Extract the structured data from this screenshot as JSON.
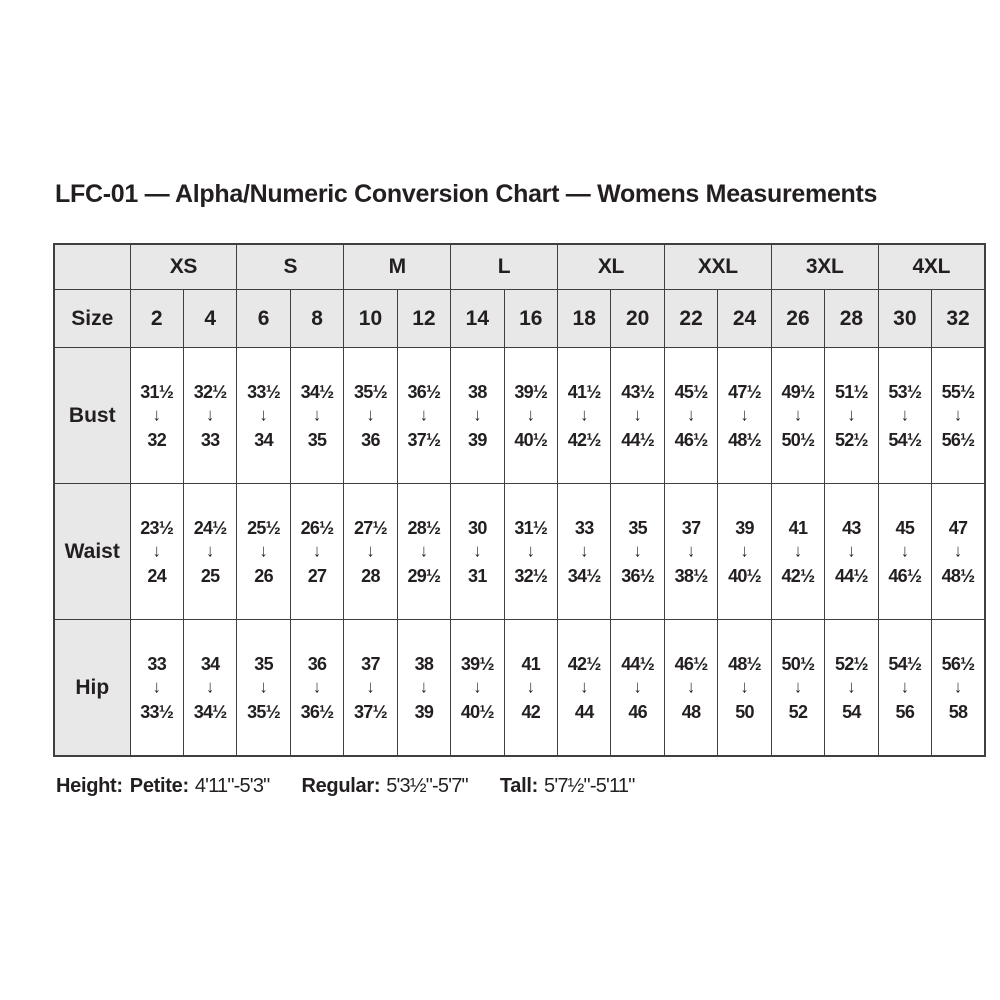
{
  "title": "LFC-01 — Alpha/Numeric Conversion Chart — Womens Measurements",
  "table": {
    "size_label": "Size",
    "alpha_sizes": [
      "XS",
      "S",
      "M",
      "L",
      "XL",
      "XXL",
      "3XL",
      "4XL"
    ],
    "sizes": [
      "2",
      "4",
      "6",
      "8",
      "10",
      "12",
      "14",
      "16",
      "18",
      "20",
      "22",
      "24",
      "26",
      "28",
      "30",
      "32"
    ],
    "arrow": "↓",
    "rows": [
      {
        "label": "Bust",
        "cells": [
          {
            "from": "31½",
            "to": "32"
          },
          {
            "from": "32½",
            "to": "33"
          },
          {
            "from": "33½",
            "to": "34"
          },
          {
            "from": "34½",
            "to": "35"
          },
          {
            "from": "35½",
            "to": "36"
          },
          {
            "from": "36½",
            "to": "37½"
          },
          {
            "from": "38",
            "to": "39"
          },
          {
            "from": "39½",
            "to": "40½"
          },
          {
            "from": "41½",
            "to": "42½"
          },
          {
            "from": "43½",
            "to": "44½"
          },
          {
            "from": "45½",
            "to": "46½"
          },
          {
            "from": "47½",
            "to": "48½"
          },
          {
            "from": "49½",
            "to": "50½"
          },
          {
            "from": "51½",
            "to": "52½"
          },
          {
            "from": "53½",
            "to": "54½"
          },
          {
            "from": "55½",
            "to": "56½"
          }
        ]
      },
      {
        "label": "Waist",
        "cells": [
          {
            "from": "23½",
            "to": "24"
          },
          {
            "from": "24½",
            "to": "25"
          },
          {
            "from": "25½",
            "to": "26"
          },
          {
            "from": "26½",
            "to": "27"
          },
          {
            "from": "27½",
            "to": "28"
          },
          {
            "from": "28½",
            "to": "29½"
          },
          {
            "from": "30",
            "to": "31"
          },
          {
            "from": "31½",
            "to": "32½"
          },
          {
            "from": "33",
            "to": "34½"
          },
          {
            "from": "35",
            "to": "36½"
          },
          {
            "from": "37",
            "to": "38½"
          },
          {
            "from": "39",
            "to": "40½"
          },
          {
            "from": "41",
            "to": "42½"
          },
          {
            "from": "43",
            "to": "44½"
          },
          {
            "from": "45",
            "to": "46½"
          },
          {
            "from": "47",
            "to": "48½"
          }
        ]
      },
      {
        "label": "Hip",
        "cells": [
          {
            "from": "33",
            "to": "33½"
          },
          {
            "from": "34",
            "to": "34½"
          },
          {
            "from": "35",
            "to": "35½"
          },
          {
            "from": "36",
            "to": "36½"
          },
          {
            "from": "37",
            "to": "37½"
          },
          {
            "from": "38",
            "to": "39"
          },
          {
            "from": "39½",
            "to": "40½"
          },
          {
            "from": "41",
            "to": "42"
          },
          {
            "from": "42½",
            "to": "44"
          },
          {
            "from": "44½",
            "to": "46"
          },
          {
            "from": "46½",
            "to": "48"
          },
          {
            "from": "48½",
            "to": "50"
          },
          {
            "from": "50½",
            "to": "52"
          },
          {
            "from": "52½",
            "to": "54"
          },
          {
            "from": "54½",
            "to": "56"
          },
          {
            "from": "56½",
            "to": "58"
          }
        ]
      }
    ]
  },
  "footer": {
    "height_label": "Height:",
    "entries": [
      {
        "label": "Petite:",
        "range": "4'11\"-5'3\""
      },
      {
        "label": "Regular:",
        "range": "5'3½\"-5'7\""
      },
      {
        "label": "Tall:",
        "range": "5'7½\"-5'11\""
      }
    ]
  }
}
